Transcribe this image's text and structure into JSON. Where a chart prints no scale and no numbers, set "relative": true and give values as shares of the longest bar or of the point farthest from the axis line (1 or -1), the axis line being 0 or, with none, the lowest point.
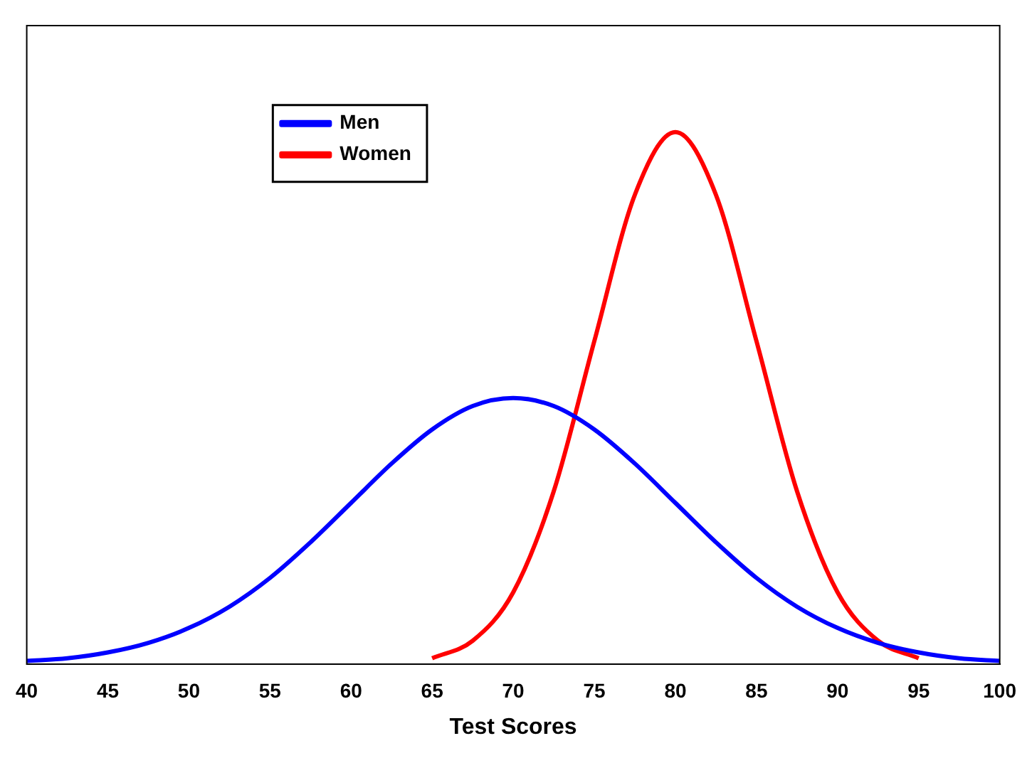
{
  "chart_data": {
    "type": "line",
    "xlabel": "Test Scores",
    "relative": true,
    "xlim": [
      40,
      100
    ],
    "xticks": [
      40,
      45,
      50,
      55,
      60,
      65,
      70,
      75,
      80,
      85,
      90,
      95,
      100
    ],
    "grid": false,
    "legend": "top left",
    "marker": "none",
    "line_style": "solid",
    "series": [
      {
        "name": "Men",
        "color": "#0000ff",
        "x": [
          40,
          42.5,
          45,
          47.5,
          50,
          52.5,
          55,
          57.5,
          60,
          62.5,
          65,
          67.5,
          70,
          72.5,
          75,
          77.5,
          80,
          82.5,
          85,
          87.5,
          90,
          92.5,
          95,
          97.5,
          100
        ],
        "values": [
          0.006,
          0.011,
          0.022,
          0.04,
          0.068,
          0.108,
          0.162,
          0.229,
          0.303,
          0.377,
          0.441,
          0.485,
          0.5,
          0.485,
          0.441,
          0.377,
          0.303,
          0.229,
          0.162,
          0.108,
          0.068,
          0.04,
          0.022,
          0.011,
          0.006
        ]
      },
      {
        "name": "Women",
        "color": "#ff0000",
        "x": [
          65,
          67.5,
          70,
          72.5,
          75,
          77.5,
          80,
          82.5,
          85,
          87.5,
          90,
          92.5,
          95
        ],
        "values": [
          0.011,
          0.044,
          0.135,
          0.325,
          0.607,
          0.882,
          1,
          0.882,
          0.607,
          0.325,
          0.135,
          0.044,
          0.011
        ]
      }
    ]
  }
}
